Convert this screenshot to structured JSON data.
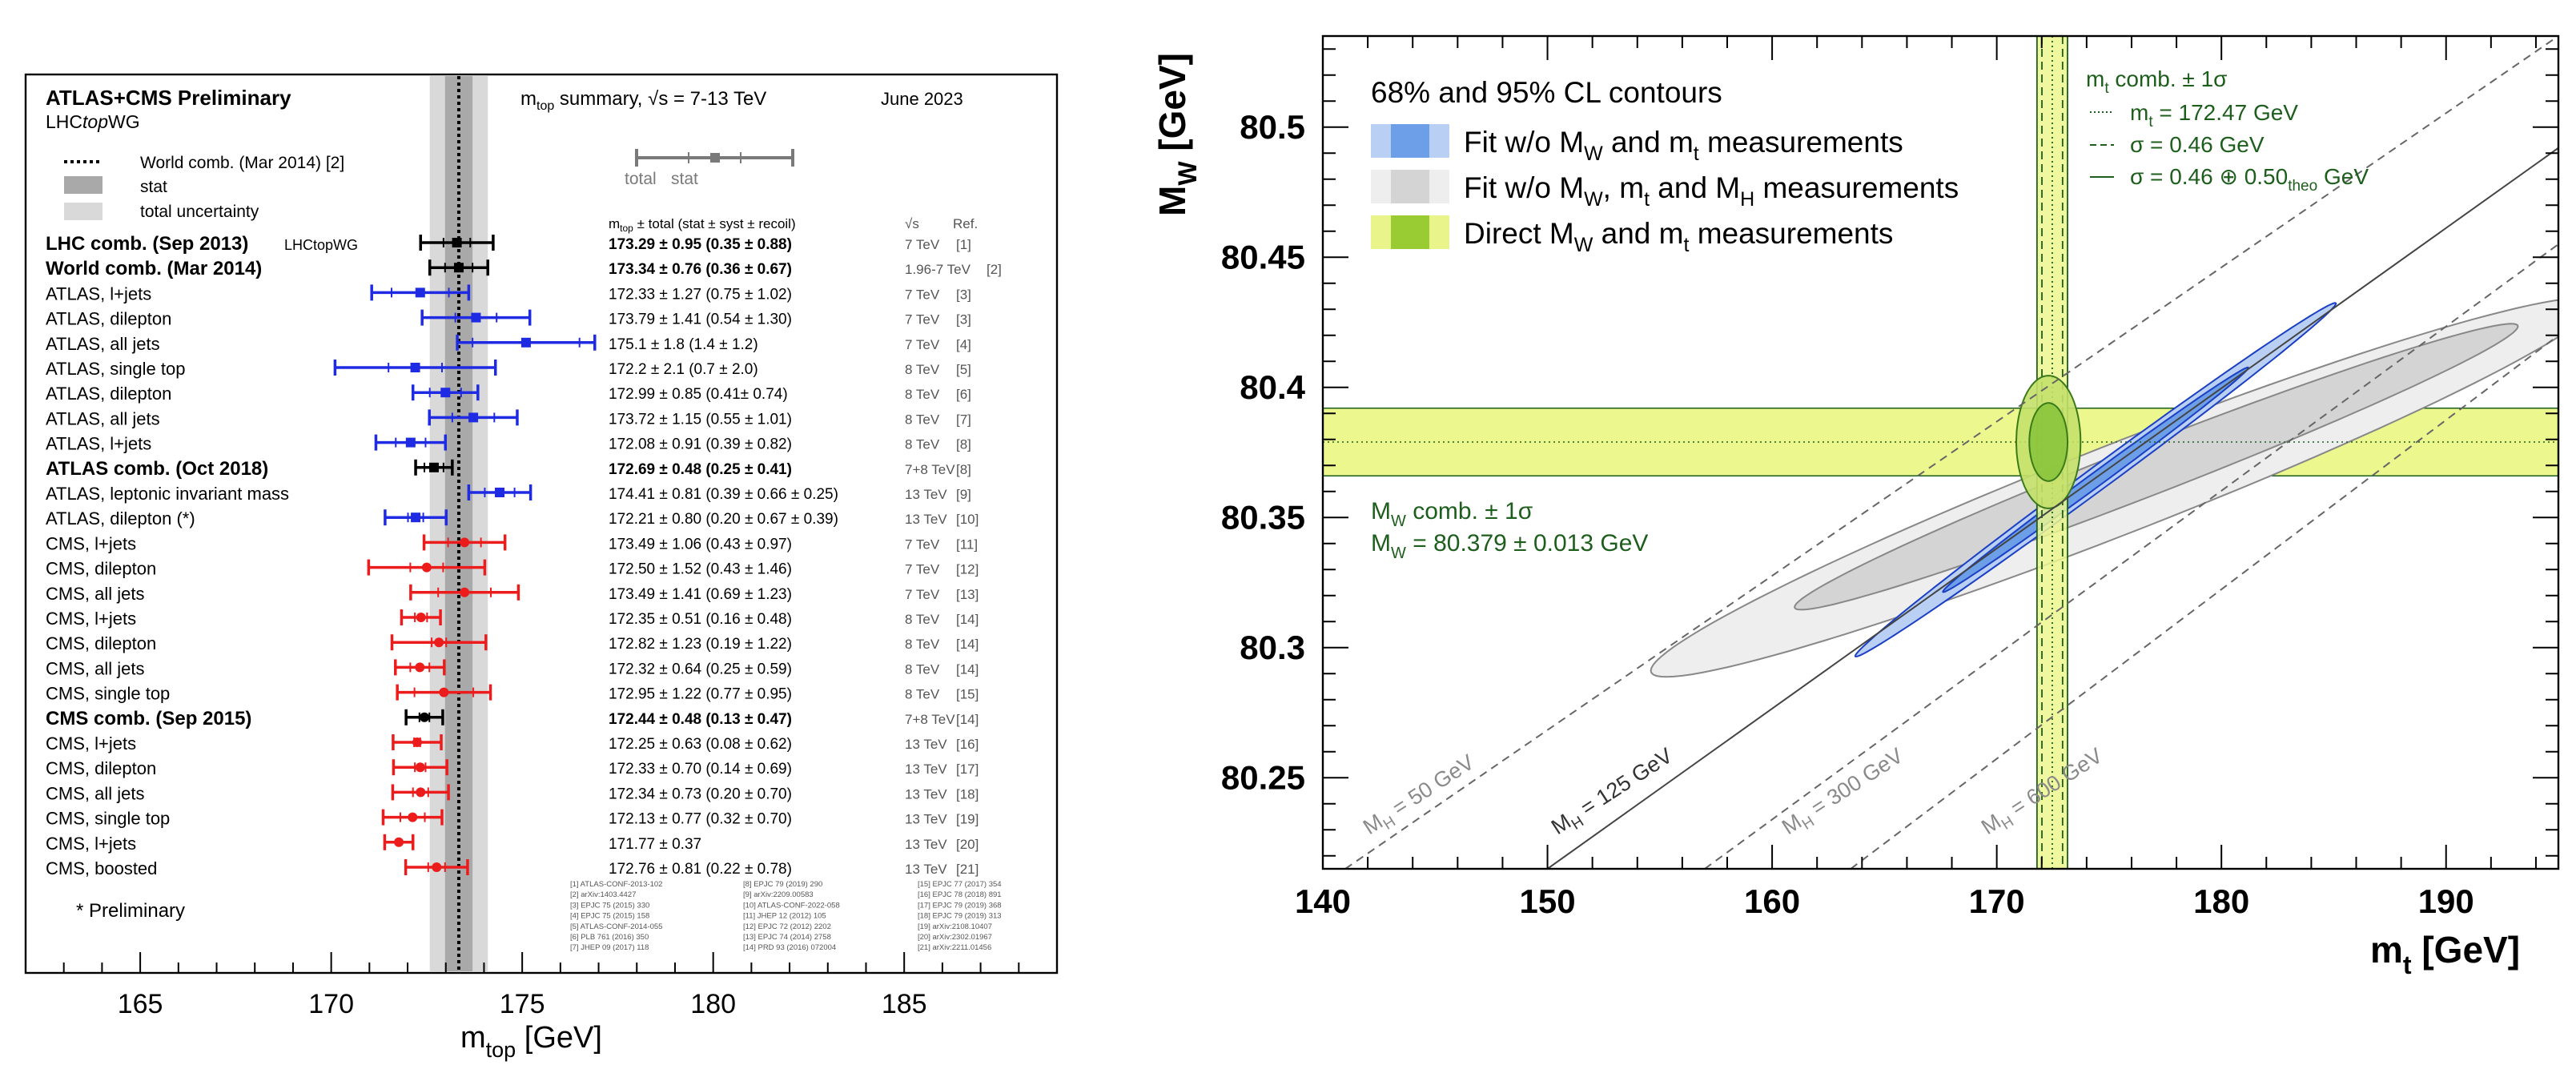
{
  "left_panel": {
    "header": {
      "collab": "ATLAS+CMS Preliminary",
      "group_lhc": "LHC",
      "group_top": "top",
      "group_wg": "WG",
      "summary_m": "m",
      "summary_sub": "top",
      "summary_rest": " summary, √s = 7-13 TeV",
      "date": "June 2023"
    },
    "legend": {
      "world": "World comb. (Mar 2014) [2]",
      "stat": "stat",
      "total": "total uncertainty",
      "bar_total": "total",
      "bar_stat": "stat"
    },
    "col_headers": {
      "m": "m",
      "m_sub": "top",
      "m_rest": " ± total (stat ± syst ± recoil)",
      "sqrts": "√s",
      "ref": "Ref."
    },
    "preliminary_note": "* Preliminary"
  },
  "right_panel": {
    "legend_title": "68% and 95% CL contours",
    "legend_items": [
      {
        "pre": "Fit w/o M",
        "s1": "W",
        "mid": " and m",
        "s2": "t",
        "post": " measurements"
      },
      {
        "pre": "Fit w/o M",
        "s1": "W",
        "mid": ", m",
        "s2": "t",
        "post": " and M",
        "s3": "H",
        "post2": " measurements"
      },
      {
        "pre": "Direct M",
        "s1": "W",
        "mid": " and m",
        "s2": "t",
        "post": " measurements"
      }
    ],
    "mt_box": {
      "title_m": "m",
      "title_sub": "t",
      "title_rest": " comb. ± 1σ",
      "line1_m": "m",
      "line1_sub": "t",
      "line1_rest": " = 172.47 GeV",
      "line2": "σ = 0.46 GeV",
      "line3_pre": "σ = 0.46 ⊕ 0.50",
      "line3_sub": "theo",
      "line3_post": " GeV"
    },
    "mw_box": {
      "line1_m": "M",
      "line1_sub": "W",
      "line1_rest": " comb. ± 1σ",
      "line2_m": "M",
      "line2_sub": "W",
      "line2_rest": " = 80.379 ± 0.013 GeV"
    },
    "mh_labels": [
      {
        "pre": "M",
        "sub": "H",
        "post": " = 50 GeV"
      },
      {
        "pre": "M",
        "sub": "H",
        "post": " = 125 GeV"
      },
      {
        "pre": "M",
        "sub": "H",
        "post": " = 300 GeV"
      },
      {
        "pre": "M",
        "sub": "H",
        "post": " = 600 GeV"
      }
    ],
    "colors": {
      "blue": "#6d9fe8",
      "grey": "#d4d4d4",
      "green": "#99cc33",
      "yellow": "#ecf78e",
      "darkgreen": "#1d5e1d"
    }
  },
  "chart_data": [
    {
      "type": "scatter",
      "title": "m_top summary, √s = 7-13 TeV",
      "xlabel": "m_top [GeV]",
      "xlim": [
        162,
        189
      ],
      "xticks": [
        165,
        170,
        175,
        180,
        185
      ],
      "world_comb": {
        "value": 173.34,
        "stat": 0.36,
        "total": 0.76
      },
      "entries": [
        {
          "label": "LHC comb. (Sep 2013)",
          "tag": "LHCtopWG",
          "bold": true,
          "color": "black",
          "marker": "square",
          "value": 173.29,
          "total": 0.95,
          "stat": 0.35,
          "text": "173.29 ± 0.95 (0.35 ± 0.88)",
          "sqrts": "7 TeV",
          "ref": "[1]"
        },
        {
          "label": "World comb. (Mar 2014)",
          "bold": true,
          "color": "black",
          "marker": "square",
          "value": 173.34,
          "total": 0.76,
          "stat": 0.36,
          "text": "173.34 ± 0.76 (0.36 ± 0.67)",
          "sqrts": "1.96-7 TeV",
          "ref": "[2]"
        },
        {
          "label": "ATLAS, l+jets",
          "color": "blue",
          "marker": "square",
          "value": 172.33,
          "total": 1.27,
          "stat": 0.75,
          "text": "172.33 ± 1.27 (0.75 ± 1.02)",
          "sqrts": "7 TeV",
          "ref": "[3]"
        },
        {
          "label": "ATLAS, dilepton",
          "color": "blue",
          "marker": "square",
          "value": 173.79,
          "total": 1.41,
          "stat": 0.54,
          "text": "173.79 ± 1.41 (0.54 ± 1.30)",
          "sqrts": "7 TeV",
          "ref": "[3]"
        },
        {
          "label": "ATLAS, all jets",
          "color": "blue",
          "marker": "square",
          "value": 175.1,
          "total": 1.8,
          "stat": 1.4,
          "text": "175.1 ± 1.8 (1.4 ± 1.2)",
          "sqrts": "7 TeV",
          "ref": "[4]"
        },
        {
          "label": "ATLAS, single top",
          "color": "blue",
          "marker": "square",
          "value": 172.2,
          "total": 2.1,
          "stat": 0.7,
          "text": "172.2 ± 2.1 (0.7 ± 2.0)",
          "sqrts": "8 TeV",
          "ref": "[5]"
        },
        {
          "label": "ATLAS, dilepton",
          "color": "blue",
          "marker": "square",
          "value": 172.99,
          "total": 0.85,
          "stat": 0.41,
          "text": "172.99 ± 0.85 (0.41± 0.74)",
          "sqrts": "8 TeV",
          "ref": "[6]"
        },
        {
          "label": "ATLAS, all jets",
          "color": "blue",
          "marker": "square",
          "value": 173.72,
          "total": 1.15,
          "stat": 0.55,
          "text": "173.72 ± 1.15 (0.55 ± 1.01)",
          "sqrts": "8 TeV",
          "ref": "[7]"
        },
        {
          "label": "ATLAS, l+jets",
          "color": "blue",
          "marker": "square",
          "value": 172.08,
          "total": 0.91,
          "stat": 0.39,
          "text": "172.08 ± 0.91 (0.39 ± 0.82)",
          "sqrts": "8 TeV",
          "ref": "[8]"
        },
        {
          "label": "ATLAS comb. (Oct 2018)",
          "bold": true,
          "color": "black",
          "marker": "square",
          "value": 172.69,
          "total": 0.48,
          "stat": 0.25,
          "text": "172.69 ± 0.48 (0.25 ± 0.41)",
          "sqrts": "7+8 TeV",
          "ref": "[8]"
        },
        {
          "label": "ATLAS, leptonic invariant mass",
          "color": "blue",
          "marker": "square",
          "value": 174.41,
          "total": 0.81,
          "stat": 0.39,
          "text": "174.41 ± 0.81 (0.39 ± 0.66 ± 0.25)",
          "sqrts": "13 TeV",
          "ref": "[9]"
        },
        {
          "label": "ATLAS, dilepton (*)",
          "color": "blue",
          "marker": "square",
          "value": 172.21,
          "total": 0.8,
          "stat": 0.2,
          "text": "172.21 ± 0.80 (0.20 ± 0.67 ± 0.39)",
          "sqrts": "13 TeV",
          "ref": "[10]"
        },
        {
          "label": "CMS, l+jets",
          "color": "red",
          "marker": "circle",
          "value": 173.49,
          "total": 1.06,
          "stat": 0.43,
          "text": "173.49 ± 1.06 (0.43 ± 0.97)",
          "sqrts": "7 TeV",
          "ref": "[11]"
        },
        {
          "label": "CMS, dilepton",
          "color": "red",
          "marker": "circle",
          "value": 172.5,
          "total": 1.52,
          "stat": 0.43,
          "text": "172.50 ± 1.52 (0.43 ± 1.46)",
          "sqrts": "7 TeV",
          "ref": "[12]"
        },
        {
          "label": "CMS, all jets",
          "color": "red",
          "marker": "circle",
          "value": 173.49,
          "total": 1.41,
          "stat": 0.69,
          "text": "173.49 ± 1.41 (0.69 ± 1.23)",
          "sqrts": "7 TeV",
          "ref": "[13]"
        },
        {
          "label": "CMS, l+jets",
          "color": "red",
          "marker": "circle",
          "value": 172.35,
          "total": 0.51,
          "stat": 0.16,
          "text": "172.35 ± 0.51 (0.16 ± 0.48)",
          "sqrts": "8 TeV",
          "ref": "[14]"
        },
        {
          "label": "CMS, dilepton",
          "color": "red",
          "marker": "circle",
          "value": 172.82,
          "total": 1.23,
          "stat": 0.19,
          "text": "172.82 ± 1.23 (0.19 ± 1.22)",
          "sqrts": "8 TeV",
          "ref": "[14]"
        },
        {
          "label": "CMS, all jets",
          "color": "red",
          "marker": "circle",
          "value": 172.32,
          "total": 0.64,
          "stat": 0.25,
          "text": "172.32 ± 0.64 (0.25 ± 0.59)",
          "sqrts": "8 TeV",
          "ref": "[14]"
        },
        {
          "label": "CMS, single top",
          "color": "red",
          "marker": "circle",
          "value": 172.95,
          "total": 1.22,
          "stat": 0.77,
          "text": "172.95 ± 1.22 (0.77 ± 0.95)",
          "sqrts": "8 TeV",
          "ref": "[15]"
        },
        {
          "label": "CMS comb. (Sep 2015)",
          "bold": true,
          "color": "black",
          "marker": "circle",
          "value": 172.44,
          "total": 0.48,
          "stat": 0.13,
          "text": "172.44 ± 0.48 (0.13 ± 0.47)",
          "sqrts": "7+8 TeV",
          "ref": "[14]"
        },
        {
          "label": "CMS, l+jets",
          "color": "red",
          "marker": "circle",
          "value": 172.25,
          "total": 0.63,
          "stat": 0.08,
          "text": "172.25 ± 0.63 (0.08 ± 0.62)",
          "sqrts": "13 TeV",
          "ref": "[16]"
        },
        {
          "label": "CMS, dilepton",
          "color": "red",
          "marker": "circle",
          "value": 172.33,
          "total": 0.7,
          "stat": 0.14,
          "text": "172.33 ± 0.70 (0.14 ± 0.69)",
          "sqrts": "13 TeV",
          "ref": "[17]"
        },
        {
          "label": "CMS, all jets",
          "color": "red",
          "marker": "circle",
          "value": 172.34,
          "total": 0.73,
          "stat": 0.2,
          "text": "172.34 ± 0.73 (0.20 ± 0.70)",
          "sqrts": "13 TeV",
          "ref": "[18]"
        },
        {
          "label": "CMS, single top",
          "color": "red",
          "marker": "circle",
          "value": 172.13,
          "total": 0.77,
          "stat": 0.32,
          "text": "172.13 ± 0.77 (0.32 ± 0.70)",
          "sqrts": "13 TeV",
          "ref": "[19]"
        },
        {
          "label": "CMS, l+jets",
          "color": "red",
          "marker": "circle",
          "value": 171.77,
          "total": 0.37,
          "stat": 0.37,
          "text": "171.77 ± 0.37",
          "sqrts": "13 TeV",
          "ref": "[20]"
        },
        {
          "label": "CMS, boosted",
          "color": "red",
          "marker": "circle",
          "value": 172.76,
          "total": 0.81,
          "stat": 0.22,
          "text": "172.76 ± 0.81 (0.22 ± 0.78)",
          "sqrts": "13 TeV",
          "ref": "[21]"
        }
      ],
      "references": [
        "[1] ATLAS-CONF-2013-102",
        "[2] arXiv:1403.4427",
        "[3] EPJC 75 (2015) 330",
        "[4] EPJC 75 (2015) 158",
        "[5] ATLAS-CONF-2014-055",
        "[6] PLB 761 (2016) 350",
        "[7] JHEP 09 (2017) 118",
        "[8] EPJC 79 (2019) 290",
        "[9] arXiv:2209.00583",
        "[10] ATLAS-CONF-2022-058",
        "[11] JHEP 12 (2012) 105",
        "[12] EPJC 72 (2012) 2202",
        "[13] EPJC 74 (2014) 2758",
        "[14] PRD 93 (2016) 072004",
        "[15] EPJC 77 (2017) 354",
        "[16] EPJC 78 (2018) 891",
        "[17] EPJC 79 (2019) 368",
        "[18] EPJC 79 (2019) 313",
        "[19] arXiv:2108.10407",
        "[20] arXiv:2302.01967",
        "[21] arXiv:2211.01456"
      ]
    },
    {
      "type": "contour",
      "xlabel": "m_t [GeV]",
      "ylabel": "M_W [GeV]",
      "xlim": [
        140,
        195
      ],
      "ylim": [
        80.215,
        80.535
      ],
      "xticks": [
        140,
        150,
        160,
        170,
        180,
        190
      ],
      "yticks": [
        80.25,
        80.3,
        80.35,
        80.4,
        80.45,
        80.5
      ],
      "mt_comb": {
        "value": 172.47,
        "sigma": 0.46,
        "sigma_total": 0.68
      },
      "mw_comb": {
        "value": 80.379,
        "sigma": 0.013
      },
      "mh_lines": [
        {
          "mh": 50,
          "style": "dashed",
          "points": [
            [
              141,
              80.215
            ],
            [
              195,
              80.535
            ]
          ]
        },
        {
          "mh": 125,
          "style": "solid",
          "points": [
            [
              150,
              80.215
            ],
            [
              195,
              80.492
            ]
          ]
        },
        {
          "mh": 300,
          "style": "dashed",
          "points": [
            [
              157,
              80.215
            ],
            [
              195,
              80.455
            ]
          ]
        },
        {
          "mh": 600,
          "style": "dashed",
          "points": [
            [
              163.5,
              80.215
            ],
            [
              195,
              80.42
            ]
          ]
        }
      ],
      "contours": [
        {
          "name": "Fit w/o MW, mt and MH — 95%",
          "color": "grey",
          "cx": 175.6,
          "cy": 80.3615,
          "rx": 21.0,
          "ry": 0.0185,
          "slope": 0.00335
        },
        {
          "name": "Fit w/o MW, mt and MH — 68%",
          "color": "grey",
          "cx": 177.1,
          "cy": 80.3695,
          "rx": 16.1,
          "ry": 0.0105,
          "slope": 0.00335
        },
        {
          "name": "Fit w/o MW and mt — 95%",
          "color": "blue",
          "cx": 174.4,
          "cy": 80.3645,
          "rx": 10.7,
          "ry": 0.0055,
          "slope": 0.00633
        },
        {
          "name": "Fit w/o MW and mt — 68%",
          "color": "blue",
          "cx": 174.4,
          "cy": 80.3645,
          "rx": 6.8,
          "ry": 0.0033,
          "slope": 0.00633
        },
        {
          "name": "Direct MW and mt — 95%",
          "color": "green",
          "cx": 172.3,
          "cy": 80.379,
          "rx": 1.43,
          "ry": 0.0255
        },
        {
          "name": "Direct MW and mt — 68%",
          "color": "green",
          "cx": 172.3,
          "cy": 80.379,
          "rx": 0.85,
          "ry": 0.015
        }
      ]
    }
  ]
}
